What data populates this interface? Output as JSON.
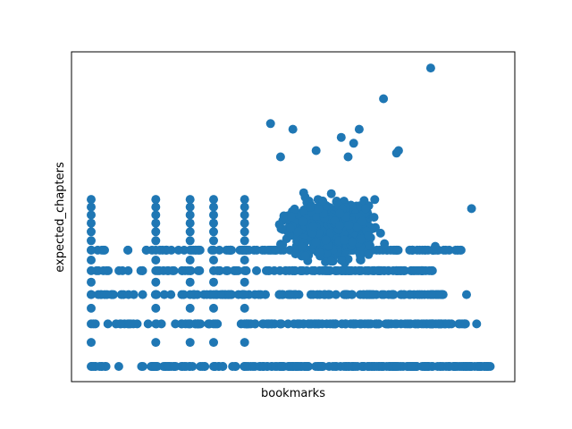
{
  "chart_data": {
    "type": "scatter",
    "title": "",
    "xlabel": "bookmarks",
    "ylabel": "expected_chapters",
    "xticks": [],
    "yticks": [],
    "grid": false,
    "legend": false,
    "marker_color": "#1f77b4",
    "xlim": [
      -1,
      30
    ],
    "ylim": [
      -0.5,
      18.5
    ],
    "x_scale": "sqrt",
    "y_scale": "sqrt",
    "row_bands": [
      {
        "y": 0,
        "x_min": 0,
        "x_max": 29.5,
        "count": 220
      },
      {
        "y": 1,
        "x_min": 0,
        "x_max": 28,
        "count": 150
      },
      {
        "y": 2,
        "x_min": 0,
        "x_max": 24,
        "count": 140
      },
      {
        "y": 3,
        "x_min": 0,
        "x_max": 23,
        "count": 130
      },
      {
        "y": 4,
        "x_min": 0,
        "x_max": 26,
        "count": 130
      }
    ],
    "vertical_columns": [
      {
        "x": 0,
        "y_min": 0,
        "y_max": 7
      },
      {
        "x": 2,
        "y_min": 0,
        "y_max": 7.3
      },
      {
        "x": 3.5,
        "y_min": 0,
        "y_max": 7
      },
      {
        "x": 4.7,
        "y_min": 0,
        "y_max": 7
      },
      {
        "x": 6.5,
        "y_min": 0,
        "y_max": 7
      }
    ],
    "cluster": {
      "x_center": 13,
      "y_center": 5.2,
      "x_spread": 5.5,
      "y_spread": 1.5,
      "count": 900
    },
    "points": [
      {
        "x": 22.5,
        "y": 18.3
      },
      {
        "x": 17.6,
        "y": 15.2
      },
      {
        "x": 8.2,
        "y": 12.9
      },
      {
        "x": 9.8,
        "y": 12.4
      },
      {
        "x": 15.3,
        "y": 12.4
      },
      {
        "x": 13.7,
        "y": 11.7
      },
      {
        "x": 14.8,
        "y": 11.2
      },
      {
        "x": 11.6,
        "y": 10.6
      },
      {
        "x": 19.1,
        "y": 10.6
      },
      {
        "x": 18.9,
        "y": 10.4
      },
      {
        "x": 14.3,
        "y": 10.1
      },
      {
        "x": 8.9,
        "y": 10.1
      },
      {
        "x": 27.2,
        "y": 6.4
      },
      {
        "x": 26.6,
        "y": 2.0
      },
      {
        "x": 28.3,
        "y": 0.0
      },
      {
        "x": 28.8,
        "y": 0.0
      },
      {
        "x": 23.0,
        "y": 4.2
      },
      {
        "x": 21.5,
        "y": 3.0
      },
      {
        "x": 20.2,
        "y": 2.0
      }
    ]
  }
}
